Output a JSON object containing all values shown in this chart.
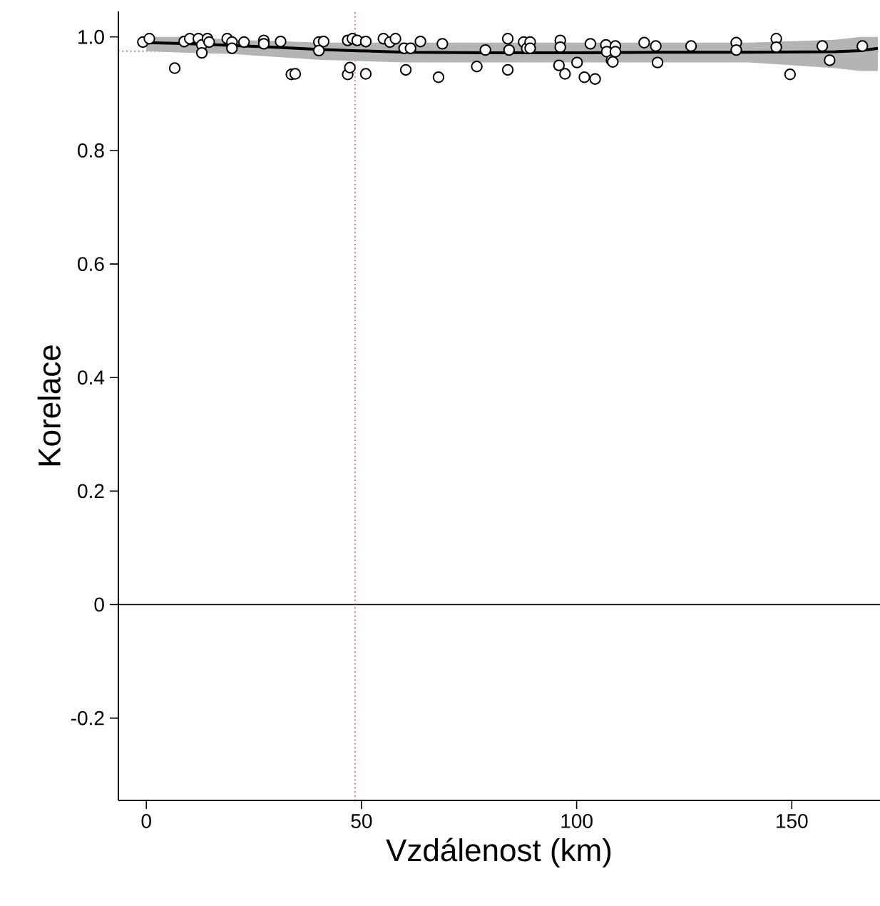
{
  "chart_data": {
    "type": "scatter",
    "xlabel": "Vzdálenost (km)",
    "ylabel": "Korelace",
    "xlim": [
      -6.5,
      170.5
    ],
    "ylim": [
      -0.345,
      1.045
    ],
    "xticks": [
      0,
      50,
      100,
      150
    ],
    "yticks": [
      -0.2,
      0,
      0.2,
      0.4,
      0.6,
      0.8,
      {
        "value": 1.0,
        "label": "1.0"
      }
    ],
    "series": [
      {
        "type": "line",
        "color": "#000000",
        "marker": "none",
        "line_style": "solid",
        "x": [
          0,
          10,
          20,
          30,
          40,
          48,
          60,
          80,
          100,
          120,
          140,
          160,
          166,
          170
        ],
        "values": [
          0.99,
          0.988,
          0.985,
          0.982,
          0.978,
          0.976,
          0.973,
          0.972,
          0.972,
          0.973,
          0.973,
          0.974,
          0.976,
          0.98
        ],
        "lower": [
          0.975,
          0.972,
          0.97,
          0.965,
          0.96,
          0.958,
          0.955,
          0.955,
          0.955,
          0.955,
          0.955,
          0.945,
          0.94,
          0.94
        ],
        "upper": [
          1.0,
          1.0,
          0.995,
          0.993,
          0.99,
          0.99,
          0.99,
          0.99,
          0.99,
          0.99,
          0.99,
          0.995,
          1.0,
          1.0
        ]
      },
      {
        "color": "#000000",
        "marker": "circle",
        "x": [
          -0.8,
          0.7,
          6.6,
          8.8,
          10.1,
          12.1,
          12.9,
          12.9,
          14.2,
          14.6,
          18.8,
          19.9,
          19.9,
          22.7,
          27.3,
          27.3,
          31.2,
          33.7,
          34.6,
          40.1,
          40.1,
          41.2,
          46.8,
          47.9,
          49,
          51,
          46.8,
          47.3,
          51,
          55.1,
          56.6,
          57.9,
          59.9,
          61.4,
          63.7,
          68.8,
          60.3,
          67.9,
          76.8,
          78.8,
          84,
          84.3,
          84,
          87.7,
          88.4,
          89.2,
          89.2,
          96.2,
          96.2,
          95.9,
          97.3,
          100.1,
          101.8,
          103.2,
          104.3,
          106.8,
          107,
          108.1,
          109,
          109,
          108.4,
          115.7,
          118.4,
          118.8,
          126.6,
          137.1,
          137.1,
          146.4,
          146.4,
          149.6,
          157.1,
          158.8,
          166.4
        ],
        "values": [
          0.991,
          0.997,
          0.945,
          0.992,
          0.997,
          0.997,
          0.986,
          0.972,
          0.997,
          0.991,
          0.997,
          0.991,
          0.98,
          0.991,
          0.994,
          0.988,
          0.992,
          0.934,
          0.935,
          0.991,
          0.976,
          0.992,
          0.994,
          0.997,
          0.994,
          0.992,
          0.934,
          0.946,
          0.935,
          0.997,
          0.991,
          0.997,
          0.98,
          0.98,
          0.992,
          0.988,
          0.942,
          0.929,
          0.948,
          0.977,
          0.997,
          0.977,
          0.942,
          0.991,
          0.98,
          0.991,
          0.98,
          0.994,
          0.982,
          0.95,
          0.935,
          0.955,
          0.929,
          0.988,
          0.926,
          0.986,
          0.974,
          0.959,
          0.984,
          0.974,
          0.956,
          0.99,
          0.984,
          0.955,
          0.984,
          0.99,
          0.977,
          0.997,
          0.982,
          0.934,
          0.984,
          0.959,
          0.984
        ]
      }
    ],
    "ref_lines": [
      {
        "axis": "y",
        "value": 0,
        "color": "#000000",
        "line_style": "solid"
      },
      {
        "axis": "y",
        "value": 0.975,
        "color": "#555555",
        "line_style": "dotted"
      },
      {
        "axis": "x",
        "value": 48.5,
        "color": "#ff3030",
        "line_style": "dotted"
      }
    ]
  }
}
